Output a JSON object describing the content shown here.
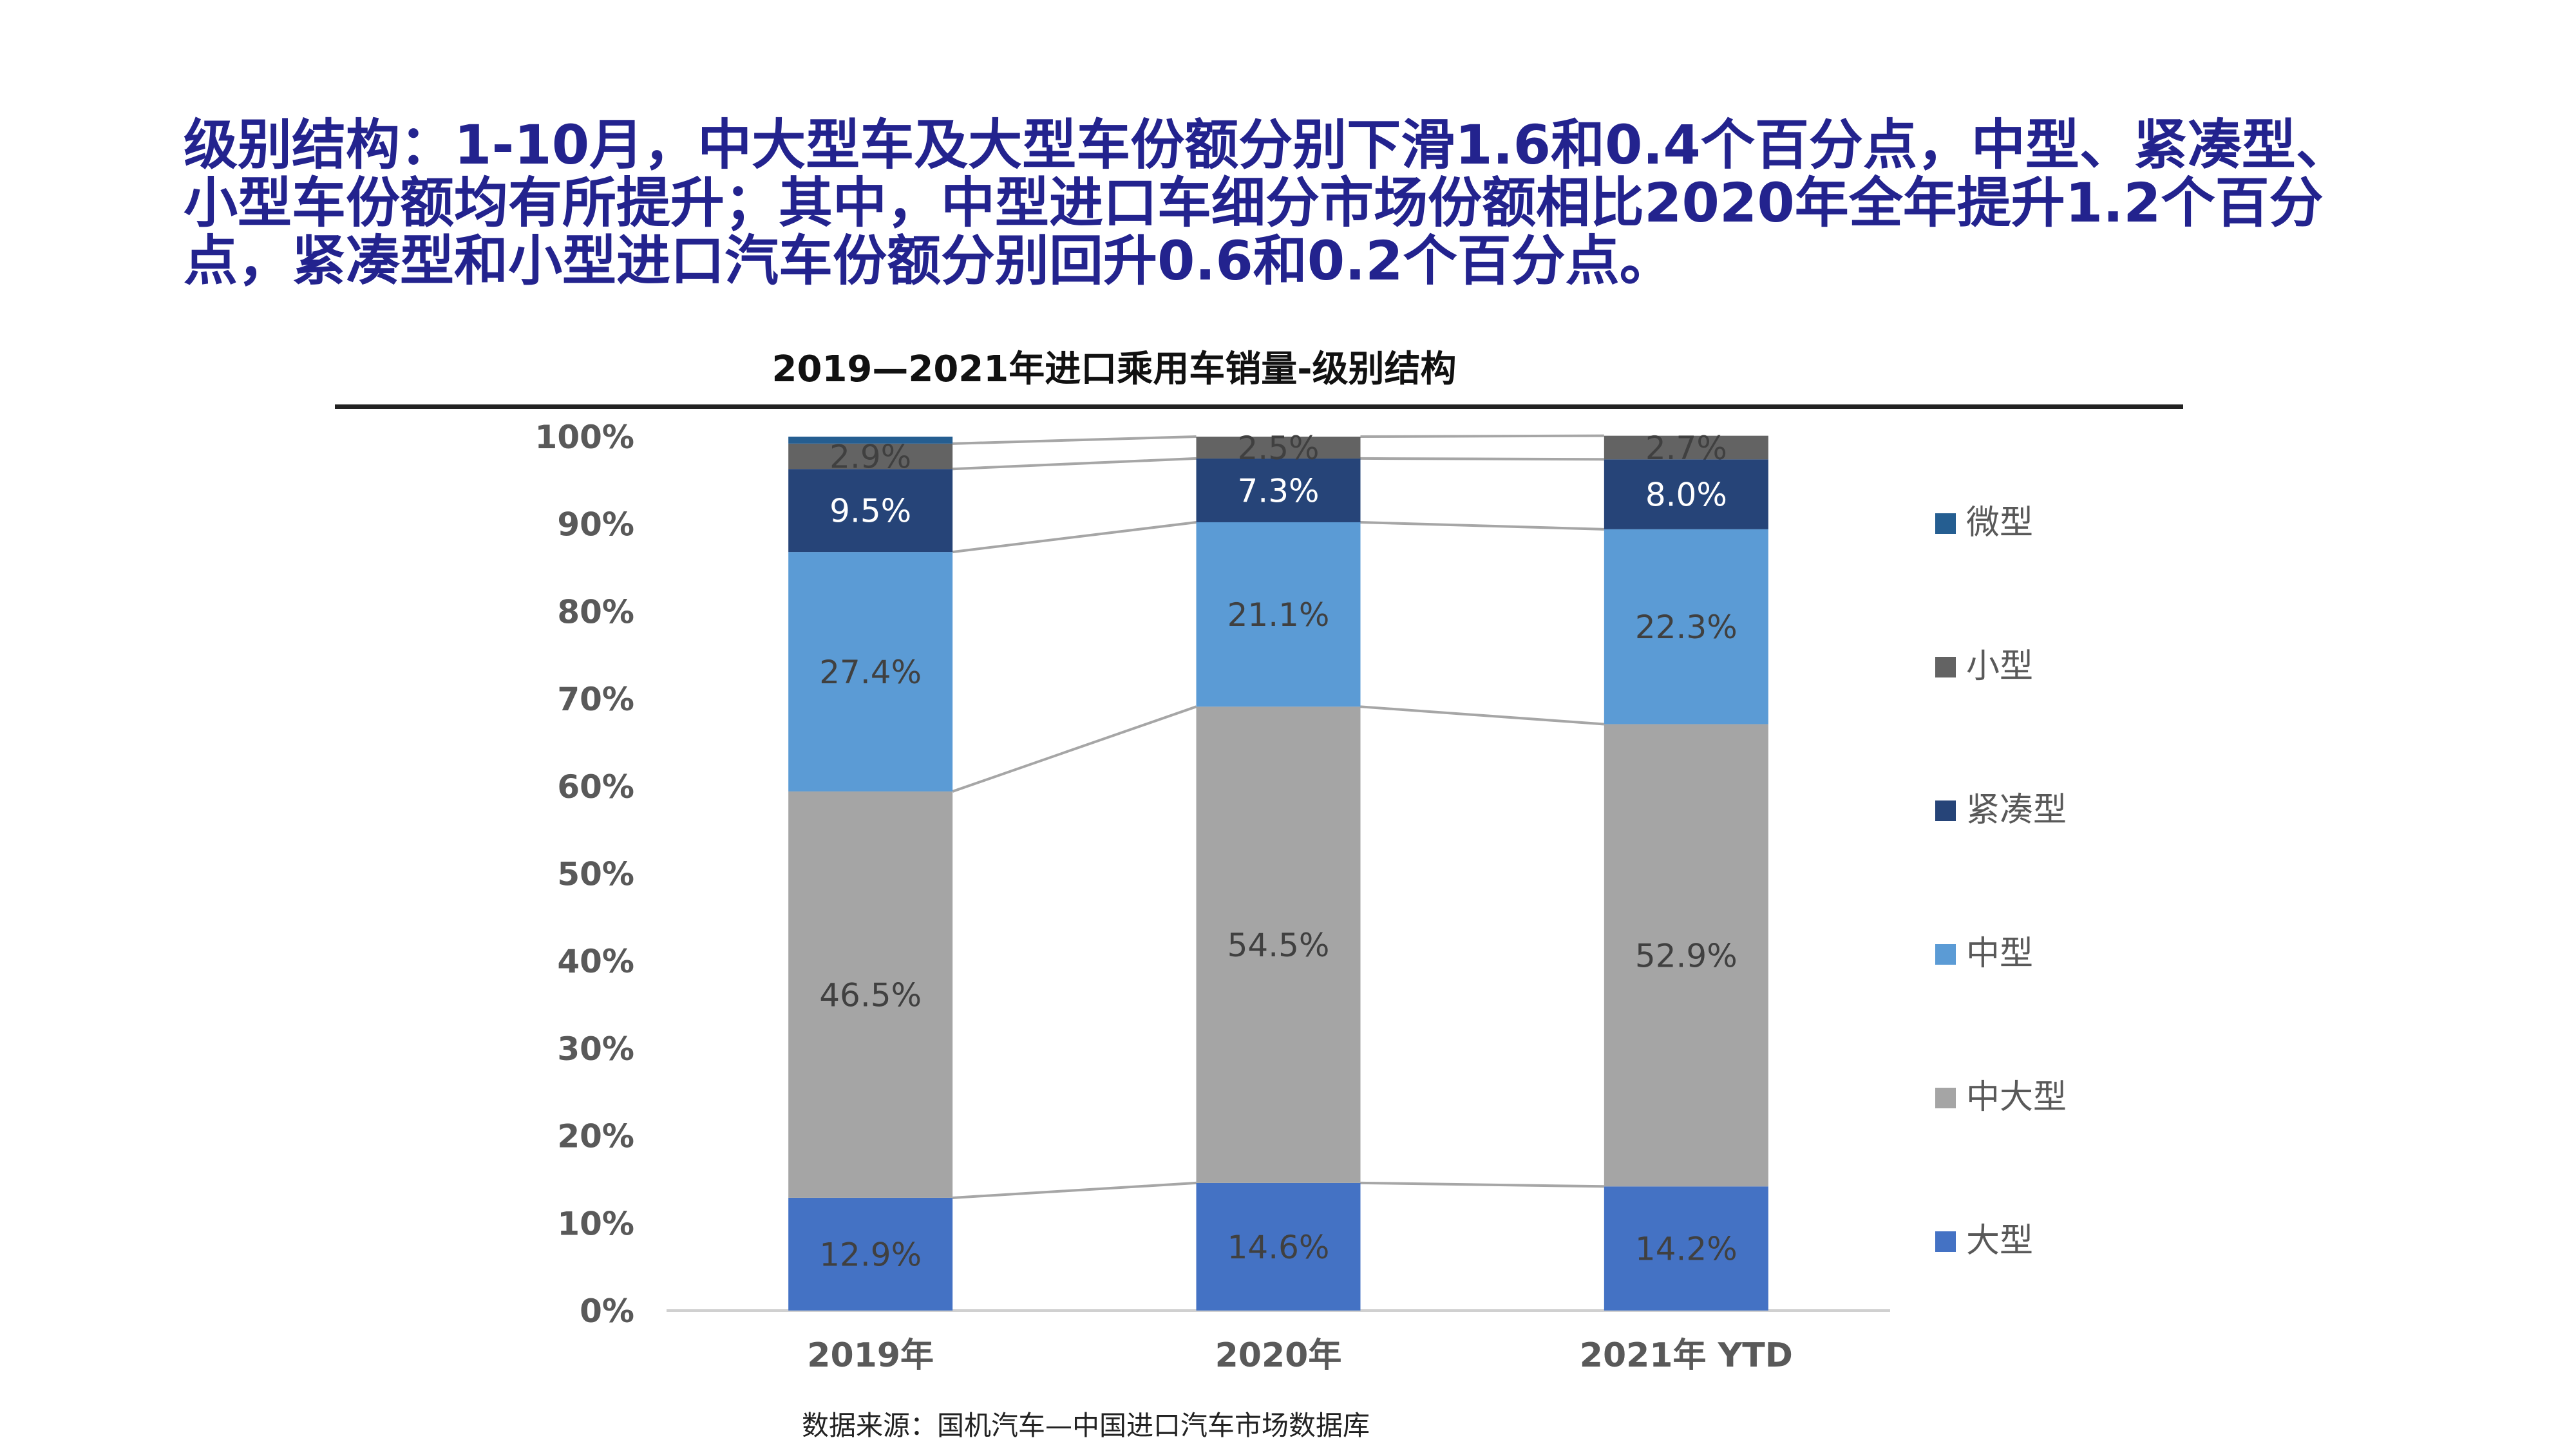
{
  "headline": {
    "line1": "级别结构：1-10月，中大型车及大型车份额分别下滑1.6和0.4个百分点，中型、紧凑型、",
    "line2": "小型车份额均有所提升；其中，中型进口车细分市场份额相比2020年全年提升1.2个百分",
    "line3": "点，紧凑型和小型进口汽车份额分别回升0.6和0.2个百分点。"
  },
  "source": "数据来源：国机汽车—中国进口汽车市场数据库",
  "chart_data": {
    "type": "bar",
    "stacked": true,
    "percent": true,
    "title": "2019—2021年进口乘用车销量-级别结构",
    "categories": [
      "2019年",
      "2020年",
      "2021年 YTD"
    ],
    "ylim": [
      0,
      100
    ],
    "yticks": [
      "0%",
      "10%",
      "20%",
      "30%",
      "40%",
      "50%",
      "60%",
      "70%",
      "80%",
      "90%",
      "100%"
    ],
    "legend_position": "right",
    "series": [
      {
        "name": "大型",
        "color": "#4472c4",
        "values": [
          12.9,
          14.6,
          14.2
        ],
        "labels": [
          "12.9%",
          "14.6%",
          "14.2%"
        ]
      },
      {
        "name": "中大型",
        "color": "#a5a5a5",
        "values": [
          46.5,
          54.5,
          52.9
        ],
        "labels": [
          "46.5%",
          "54.5%",
          "52.9%"
        ]
      },
      {
        "name": "中型",
        "color": "#5b9bd5",
        "values": [
          27.4,
          21.1,
          22.3
        ],
        "labels": [
          "27.4%",
          "21.1%",
          "22.3%"
        ]
      },
      {
        "name": "紧凑型",
        "color": "#264478",
        "values": [
          9.5,
          7.3,
          8.0
        ],
        "labels": [
          "9.5%",
          "7.3%",
          "8.0%"
        ]
      },
      {
        "name": "小型",
        "color": "#636363",
        "values": [
          2.9,
          2.5,
          2.7
        ],
        "labels": [
          "2.9%",
          "2.5%",
          "2.7%"
        ]
      },
      {
        "name": "微型",
        "color": "#255e91",
        "values": [
          0.8,
          0.0,
          0.0
        ],
        "labels": [
          "",
          "",
          ""
        ]
      }
    ]
  }
}
